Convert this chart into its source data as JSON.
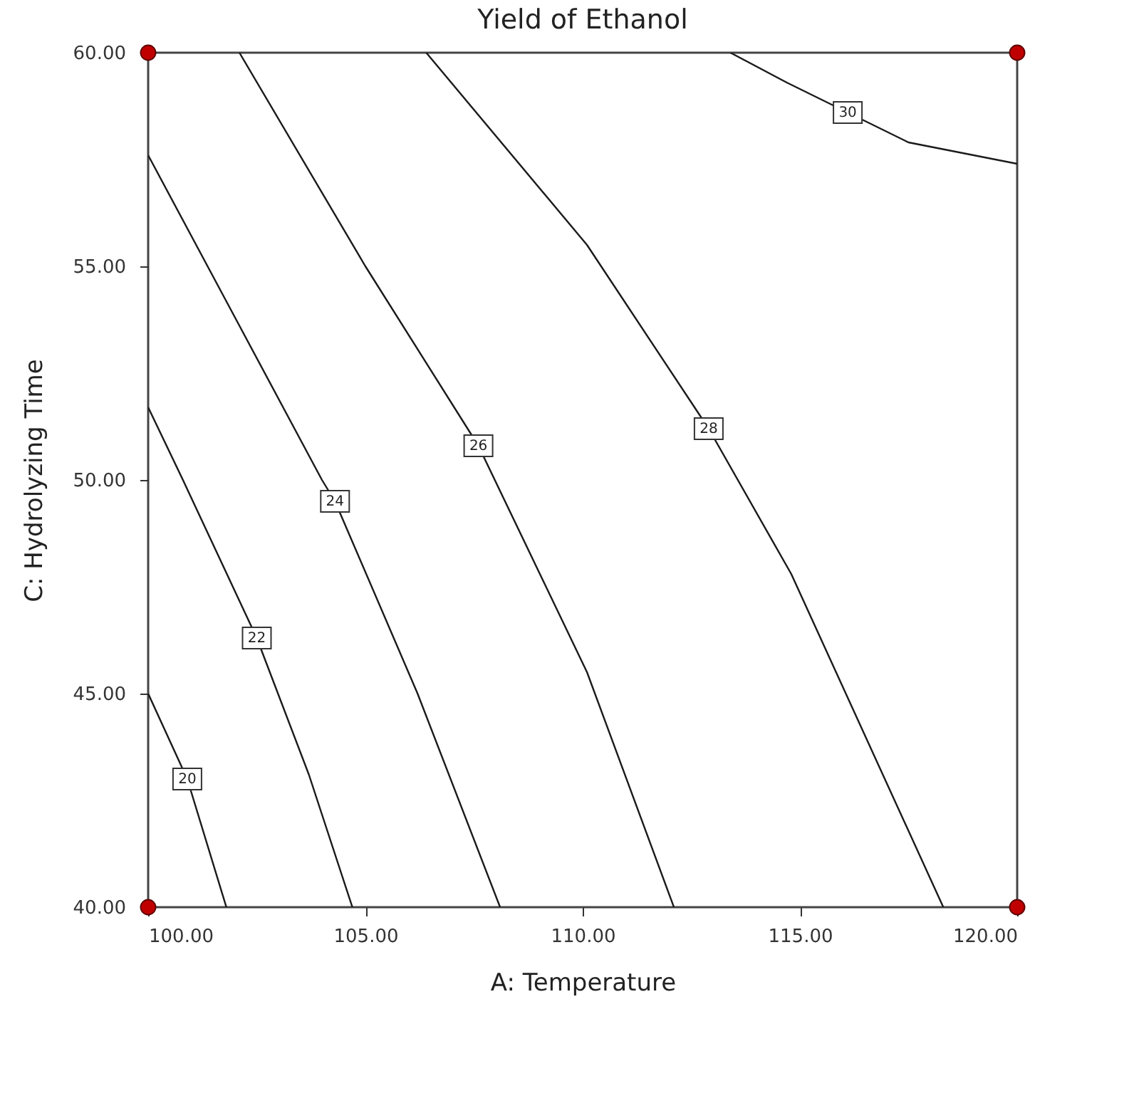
{
  "chart_data": {
    "type": "line",
    "title": "Yield of Ethanol",
    "xlabel": "A: Temperature",
    "ylabel": "C: Hydrolyzing Time",
    "xlim": [
      100,
      120
    ],
    "ylim": [
      40,
      60
    ],
    "xticks": [
      {
        "value": 100,
        "label": "100.00"
      },
      {
        "value": 105,
        "label": "105.00"
      },
      {
        "value": 110,
        "label": "110.00"
      },
      {
        "value": 115,
        "label": "115.00"
      },
      {
        "value": 120,
        "label": "120.00"
      }
    ],
    "yticks": [
      {
        "value": 40,
        "label": "40.00"
      },
      {
        "value": 45,
        "label": "45.00"
      },
      {
        "value": 50,
        "label": "50.00"
      },
      {
        "value": 55,
        "label": "55.00"
      },
      {
        "value": 60,
        "label": "60.00"
      }
    ],
    "grid": false,
    "legend": false,
    "marker": "none",
    "line_style": "solid",
    "series": [
      {
        "name": "20",
        "color": "#1a1a1a",
        "x": [
          100,
          100.9,
          101.8
        ],
        "values": [
          45.0,
          43.0,
          40
        ]
      },
      {
        "name": "22",
        "color": "#1a1a1a",
        "x": [
          100,
          100.8,
          102.5,
          103.7,
          104.7
        ],
        "values": [
          51.7,
          50.0,
          46.3,
          43.1,
          40
        ]
      },
      {
        "name": "24",
        "color": "#1a1a1a",
        "x": [
          100,
          102.0,
          104.0,
          104.3,
          106.2,
          108.1
        ],
        "values": [
          57.6,
          53.8,
          50.0,
          49.5,
          45.0,
          40
        ]
      },
      {
        "name": "26",
        "color": "#1a1a1a",
        "x": [
          102.1,
          105.0,
          107.6,
          110.1,
          112.1
        ],
        "values": [
          60,
          55.0,
          50.8,
          45.5,
          40
        ]
      },
      {
        "name": "28",
        "color": "#1a1a1a",
        "x": [
          106.4,
          110.1,
          112.9,
          114.8,
          118.3
        ],
        "values": [
          60,
          55.5,
          51.2,
          47.8,
          40
        ]
      },
      {
        "name": "30",
        "color": "#1a1a1a",
        "x": [
          113.4,
          114.7,
          116.1,
          117.5,
          120
        ],
        "values": [
          60,
          59.3,
          58.6,
          57.9,
          57.4
        ]
      },
      {
        "type": "scatter",
        "marker": "circle",
        "color": "#c00000",
        "x": [
          100,
          100,
          120,
          120
        ],
        "values": [
          40,
          60,
          40,
          60
        ]
      }
    ]
  }
}
